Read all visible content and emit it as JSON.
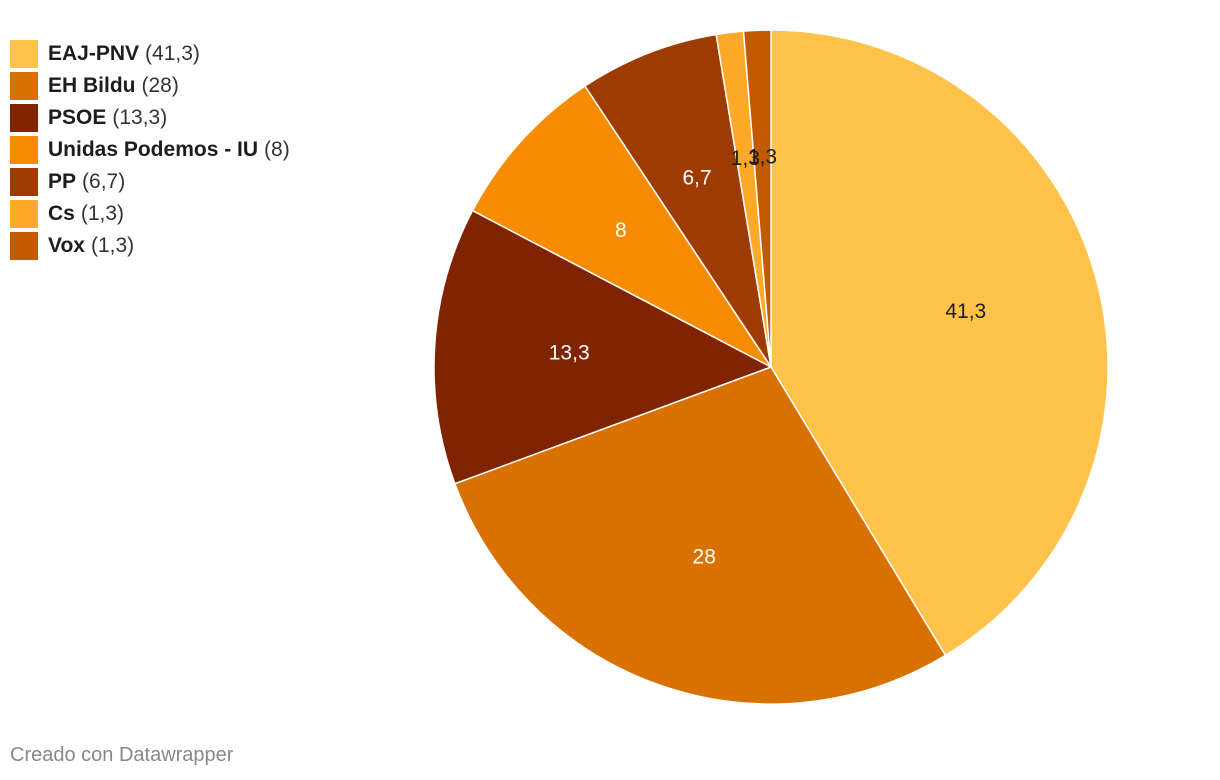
{
  "chart_data": {
    "type": "pie",
    "slices": [
      {
        "name": "EAJ-PNV",
        "value": 41.3,
        "display": "41,3",
        "legend_value": "(41,3)",
        "color": "#ffc24b",
        "label_color": "#1d1d1d"
      },
      {
        "name": "EH Bildu",
        "value": 28,
        "display": "28",
        "legend_value": "(28)",
        "color": "#d97100",
        "label_color": "#ffffff"
      },
      {
        "name": "PSOE",
        "value": 13.3,
        "display": "13,3",
        "legend_value": "(13,3)",
        "color": "#802300",
        "label_color": "#ffffff"
      },
      {
        "name": "Unidas Podemos - IU",
        "value": 8,
        "display": "8",
        "legend_value": "(8)",
        "color": "#f78c00",
        "label_color": "#ffffff"
      },
      {
        "name": "PP",
        "value": 6.7,
        "display": "6,7",
        "legend_value": "(6,7)",
        "color": "#9d3b00",
        "label_color": "#ffffff"
      },
      {
        "name": "Cs",
        "value": 1.3,
        "display": "1,3",
        "legend_value": "(1,3)",
        "color": "#ffa92b",
        "label_color": "#1d1d1d"
      },
      {
        "name": "Vox",
        "value": 1.3,
        "display": "1,3",
        "legend_value": "(1,3)",
        "color": "#c25a00",
        "label_color": "#1d1d1d"
      }
    ],
    "start": "12 o'clock",
    "direction": "clockwise",
    "legend_placement": "top-left"
  },
  "credit": "Creado con Datawrapper"
}
